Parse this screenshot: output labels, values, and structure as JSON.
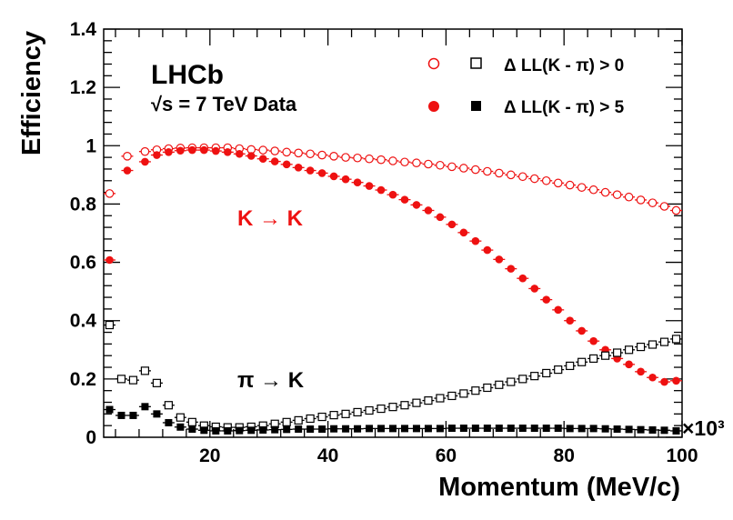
{
  "chart_data": {
    "type": "scatter",
    "xlabel": "Momentum (MeV/c)",
    "ylabel": "Efficiency",
    "x_multiplier": "×10³",
    "xlim": [
      2,
      100
    ],
    "ylim": [
      0,
      1.4
    ],
    "x_major_ticks": [
      20,
      40,
      60,
      80,
      100
    ],
    "y_major_ticks": [
      0,
      0.2,
      0.4,
      0.6,
      0.8,
      1,
      1.2,
      1.4
    ],
    "y_tick_labels": [
      "0",
      "0.2",
      "0.4",
      "0.6",
      "0.8",
      "1",
      "1.2",
      "1.4"
    ],
    "x_tick_labels": [
      "20",
      "40",
      "60",
      "80",
      "100"
    ],
    "colors": {
      "kaon": "#ee1111",
      "pion": "#000000"
    },
    "experiment_label": "LHCb",
    "energy_label": "s = 7 TeV Data",
    "energy_sqrt_symbol": "√",
    "kaon_label": "K → K",
    "pion_label": "π → K",
    "legend": [
      {
        "label": "Δ LL(K - π) > 0",
        "kaon_marker": "open-circle",
        "pion_marker": "open-square"
      },
      {
        "label": "Δ LL(K - π) > 5",
        "kaon_marker": "filled-circle",
        "pion_marker": "filled-square"
      }
    ],
    "series": [
      {
        "name": "K → K, ΔLL(K-π) > 0",
        "marker": "open-circle",
        "color": "#ee1111",
        "x": [
          3,
          6,
          9,
          11,
          13,
          15,
          17,
          19,
          21,
          23,
          25,
          27,
          29,
          31,
          33,
          35,
          37,
          39,
          41,
          43,
          45,
          47,
          49,
          51,
          53,
          55,
          57,
          59,
          61,
          63,
          65,
          67,
          69,
          71,
          73,
          75,
          77,
          79,
          81,
          83,
          85,
          87,
          89,
          91,
          93,
          95,
          97,
          99
        ],
        "values": [
          0.836,
          0.964,
          0.98,
          0.986,
          0.99,
          0.992,
          0.993,
          0.993,
          0.993,
          0.993,
          0.99,
          0.987,
          0.985,
          0.982,
          0.978,
          0.975,
          0.972,
          0.968,
          0.964,
          0.96,
          0.958,
          0.955,
          0.952,
          0.948,
          0.944,
          0.941,
          0.937,
          0.933,
          0.928,
          0.923,
          0.918,
          0.912,
          0.906,
          0.9,
          0.894,
          0.887,
          0.88,
          0.872,
          0.865,
          0.857,
          0.849,
          0.84,
          0.832,
          0.824,
          0.814,
          0.804,
          0.792,
          0.778
        ]
      },
      {
        "name": "K → K, ΔLL(K-π) > 5",
        "marker": "filled-circle",
        "color": "#ee1111",
        "x": [
          3,
          6,
          9,
          11,
          13,
          15,
          17,
          19,
          21,
          23,
          25,
          27,
          29,
          31,
          33,
          35,
          37,
          39,
          41,
          43,
          45,
          47,
          49,
          51,
          53,
          55,
          57,
          59,
          61,
          63,
          65,
          67,
          69,
          71,
          73,
          75,
          77,
          79,
          81,
          83,
          85,
          87,
          89,
          91,
          93,
          95,
          97,
          99
        ],
        "values": [
          0.608,
          0.915,
          0.945,
          0.968,
          0.978,
          0.983,
          0.985,
          0.985,
          0.982,
          0.978,
          0.972,
          0.965,
          0.955,
          0.946,
          0.936,
          0.925,
          0.915,
          0.906,
          0.895,
          0.885,
          0.874,
          0.862,
          0.848,
          0.832,
          0.815,
          0.797,
          0.778,
          0.755,
          0.73,
          0.702,
          0.673,
          0.642,
          0.61,
          0.578,
          0.545,
          0.51,
          0.472,
          0.437,
          0.4,
          0.365,
          0.33,
          0.3,
          0.27,
          0.25,
          0.225,
          0.205,
          0.19,
          0.194
        ]
      },
      {
        "name": "π → K, ΔLL(K-π) > 0",
        "marker": "open-square",
        "color": "#000000",
        "x": [
          3,
          5,
          7,
          9,
          11,
          13,
          15,
          17,
          19,
          21,
          23,
          25,
          27,
          29,
          31,
          33,
          35,
          37,
          39,
          41,
          43,
          45,
          47,
          49,
          51,
          53,
          55,
          57,
          59,
          61,
          63,
          65,
          67,
          69,
          71,
          73,
          75,
          77,
          79,
          81,
          83,
          85,
          87,
          89,
          91,
          93,
          95,
          97,
          99
        ],
        "values": [
          0.385,
          0.2,
          0.196,
          0.228,
          0.186,
          0.11,
          0.068,
          0.052,
          0.04,
          0.036,
          0.034,
          0.034,
          0.036,
          0.04,
          0.046,
          0.052,
          0.058,
          0.064,
          0.07,
          0.076,
          0.08,
          0.086,
          0.092,
          0.098,
          0.104,
          0.11,
          0.118,
          0.126,
          0.134,
          0.142,
          0.15,
          0.16,
          0.17,
          0.18,
          0.19,
          0.2,
          0.21,
          0.22,
          0.232,
          0.245,
          0.258,
          0.27,
          0.28,
          0.29,
          0.3,
          0.31,
          0.318,
          0.327,
          0.337
        ]
      },
      {
        "name": "π → K, ΔLL(K-π) > 5",
        "marker": "filled-square",
        "color": "#000000",
        "x": [
          3,
          5,
          7,
          9,
          11,
          13,
          15,
          17,
          19,
          21,
          23,
          25,
          27,
          29,
          31,
          33,
          35,
          37,
          39,
          41,
          43,
          45,
          47,
          49,
          51,
          53,
          55,
          57,
          59,
          61,
          63,
          65,
          67,
          69,
          71,
          73,
          75,
          77,
          79,
          81,
          83,
          85,
          87,
          89,
          91,
          93,
          95,
          97,
          99
        ],
        "values": [
          0.095,
          0.075,
          0.075,
          0.105,
          0.08,
          0.05,
          0.035,
          0.028,
          0.024,
          0.022,
          0.022,
          0.023,
          0.024,
          0.025,
          0.026,
          0.027,
          0.028,
          0.028,
          0.028,
          0.029,
          0.029,
          0.029,
          0.03,
          0.03,
          0.03,
          0.03,
          0.03,
          0.03,
          0.03,
          0.031,
          0.031,
          0.031,
          0.031,
          0.031,
          0.031,
          0.031,
          0.031,
          0.031,
          0.031,
          0.03,
          0.03,
          0.03,
          0.029,
          0.028,
          0.027,
          0.026,
          0.025,
          0.024,
          0.022
        ]
      }
    ]
  }
}
